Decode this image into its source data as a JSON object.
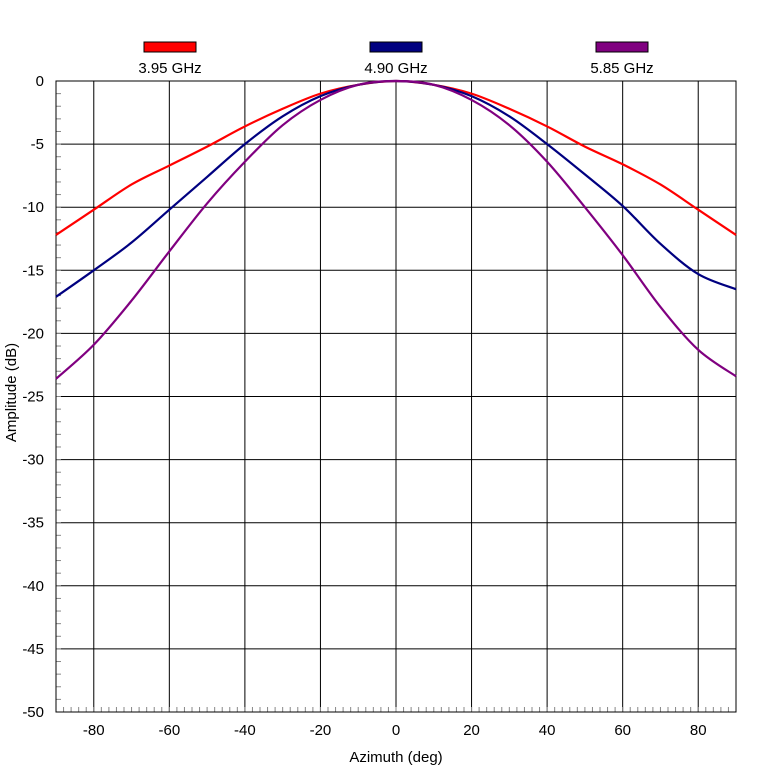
{
  "chart_data": {
    "type": "line",
    "title": "",
    "xlabel": "Azimuth (deg)",
    "ylabel": "Amplitude (dB)",
    "xlim": [
      -90,
      90
    ],
    "ylim": [
      -50,
      0
    ],
    "xticks": [
      -80,
      -60,
      -40,
      -20,
      0,
      20,
      40,
      60,
      80
    ],
    "yticks": [
      0,
      -5,
      -10,
      -15,
      -20,
      -25,
      -30,
      -35,
      -40,
      -45,
      -50
    ],
    "grid": true,
    "legend_placement": "top",
    "x": [
      -90,
      -80,
      -70,
      -60,
      -50,
      -40,
      -30,
      -20,
      -10,
      0,
      10,
      20,
      30,
      40,
      50,
      60,
      70,
      80,
      90
    ],
    "series": [
      {
        "name": "3.95 GHz",
        "color": "#ff0000",
        "values": [
          -12.2,
          -10.2,
          -8.2,
          -6.7,
          -5.2,
          -3.6,
          -2.2,
          -1.0,
          -0.3,
          0.0,
          -0.3,
          -1.0,
          -2.2,
          -3.6,
          -5.2,
          -6.6,
          -8.2,
          -10.2,
          -12.2
        ]
      },
      {
        "name": "4.90 GHz",
        "color": "#000080",
        "values": [
          -17.1,
          -15.0,
          -12.8,
          -10.2,
          -7.6,
          -5.0,
          -2.8,
          -1.2,
          -0.3,
          0.0,
          -0.3,
          -1.2,
          -2.8,
          -5.0,
          -7.4,
          -9.9,
          -12.9,
          -15.3,
          -16.5
        ]
      },
      {
        "name": "5.85 GHz",
        "color": "#800080",
        "values": [
          -23.6,
          -20.9,
          -17.4,
          -13.5,
          -9.7,
          -6.4,
          -3.5,
          -1.5,
          -0.3,
          0.0,
          -0.3,
          -1.5,
          -3.5,
          -6.4,
          -10.0,
          -13.8,
          -17.9,
          -21.3,
          -23.4
        ]
      }
    ]
  }
}
